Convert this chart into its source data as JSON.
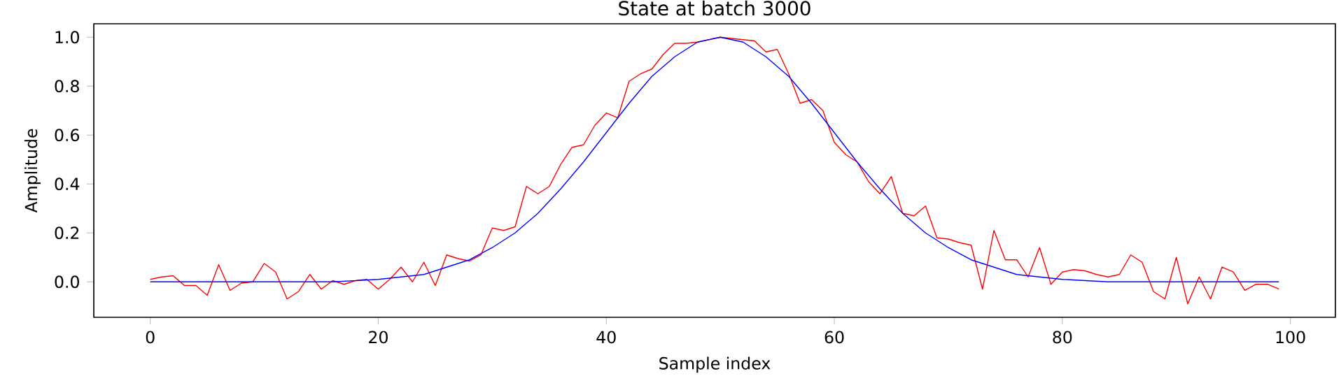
{
  "chart_data": {
    "type": "line",
    "title": "State at batch 3000",
    "xlabel": "Sample index",
    "ylabel": "Amplitude",
    "xlim": [
      -4.95,
      103.95
    ],
    "ylim": [
      -0.145,
      1.055
    ],
    "xticks": [
      0,
      20,
      40,
      60,
      80,
      100
    ],
    "yticks": [
      {
        "value": 0,
        "label": "0.0"
      },
      {
        "value": 0.2,
        "label": "0.2"
      },
      {
        "value": 0.4,
        "label": "0.4"
      },
      {
        "value": 0.6,
        "label": "0.6"
      },
      {
        "value": 0.8,
        "label": "0.8"
      },
      {
        "value": 1.0,
        "label": "1.0"
      }
    ],
    "grid": false,
    "marker": "none",
    "line_style": "solid",
    "series": [
      {
        "color": "#ff0000",
        "x": [
          0,
          1,
          2,
          3,
          4,
          5,
          6,
          7,
          8,
          9,
          10,
          11,
          12,
          13,
          14,
          15,
          16,
          17,
          18,
          19,
          20,
          21,
          22,
          23,
          24,
          25,
          26,
          27,
          28,
          29,
          30,
          31,
          32,
          33,
          34,
          35,
          36,
          37,
          38,
          39,
          40,
          41,
          42,
          43,
          44,
          45,
          46,
          47,
          48,
          49,
          50,
          51,
          52,
          53,
          54,
          55,
          56,
          57,
          58,
          59,
          60,
          61,
          62,
          63,
          64,
          65,
          66,
          67,
          68,
          69,
          70,
          71,
          72,
          73,
          74,
          75,
          76,
          77,
          78,
          79,
          80,
          81,
          82,
          83,
          84,
          85,
          86,
          87,
          88,
          89,
          90,
          91,
          92,
          93,
          94,
          95,
          96,
          97,
          98,
          99
        ],
        "values": [
          0.01,
          0.02,
          0.025,
          -0.015,
          -0.015,
          -0.055,
          0.07,
          -0.035,
          -0.005,
          0.0,
          0.075,
          0.04,
          -0.07,
          -0.04,
          0.03,
          -0.03,
          0.005,
          -0.01,
          0.005,
          0.01,
          -0.03,
          0.01,
          0.06,
          0.0,
          0.08,
          -0.015,
          0.11,
          0.095,
          0.085,
          0.11,
          0.22,
          0.21,
          0.225,
          0.39,
          0.36,
          0.39,
          0.48,
          0.55,
          0.56,
          0.64,
          0.69,
          0.67,
          0.82,
          0.85,
          0.87,
          0.93,
          0.975,
          0.975,
          0.98,
          0.99,
          1.0,
          0.995,
          0.99,
          0.985,
          0.94,
          0.95,
          0.85,
          0.73,
          0.745,
          0.7,
          0.57,
          0.52,
          0.49,
          0.41,
          0.36,
          0.43,
          0.28,
          0.27,
          0.31,
          0.18,
          0.175,
          0.16,
          0.15,
          -0.03,
          0.21,
          0.09,
          0.09,
          0.02,
          0.14,
          -0.01,
          0.04,
          0.05,
          0.045,
          0.03,
          0.02,
          0.03,
          0.11,
          0.08,
          -0.04,
          -0.07,
          0.1,
          -0.09,
          0.02,
          -0.07,
          0.06,
          0.04,
          -0.035,
          -0.01,
          -0.01,
          -0.03
        ]
      },
      {
        "color": "#0000ff",
        "x": [
          0,
          10,
          16,
          20,
          24,
          28,
          30,
          32,
          34,
          36,
          38,
          40,
          42,
          44,
          46,
          48,
          50,
          52,
          54,
          56,
          58,
          60,
          62,
          64,
          66,
          68,
          70,
          72,
          76,
          80,
          84,
          90,
          99
        ],
        "values": [
          0,
          0,
          0.0,
          0.01,
          0.03,
          0.09,
          0.14,
          0.2,
          0.28,
          0.38,
          0.49,
          0.61,
          0.73,
          0.84,
          0.92,
          0.98,
          1.0,
          0.98,
          0.92,
          0.84,
          0.73,
          0.61,
          0.49,
          0.38,
          0.28,
          0.2,
          0.14,
          0.09,
          0.03,
          0.01,
          0.0,
          0,
          0
        ]
      }
    ]
  }
}
